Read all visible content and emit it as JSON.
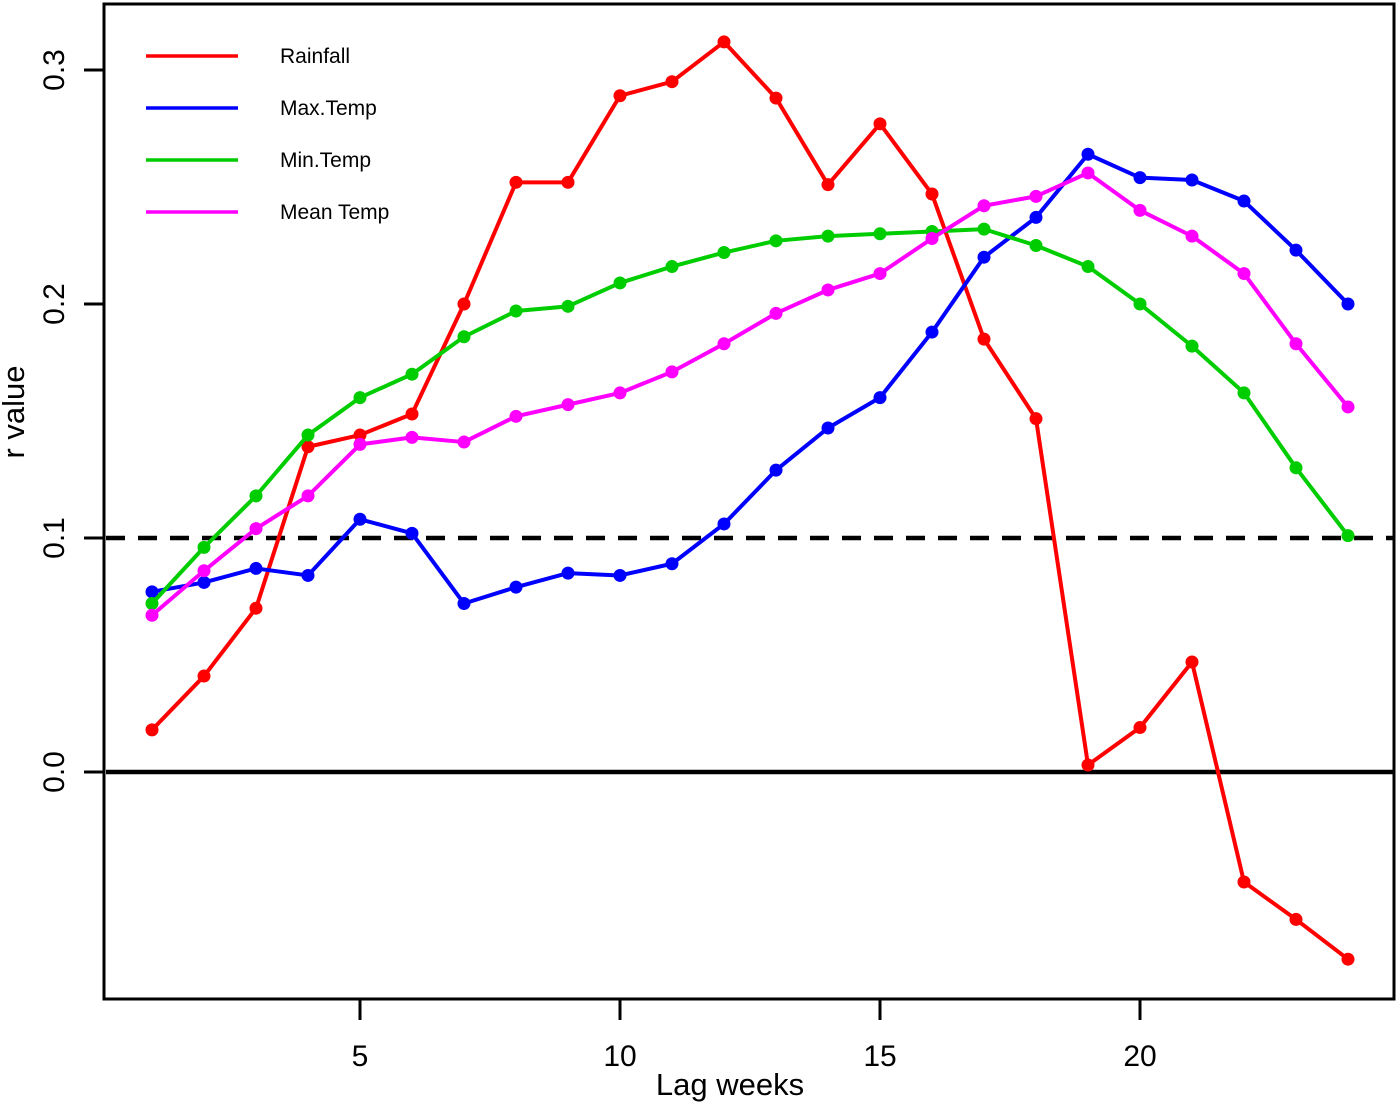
{
  "chart_data": {
    "type": "line",
    "title": "",
    "xlabel": "Lag weeks",
    "ylabel": "r value",
    "x": [
      1,
      2,
      3,
      4,
      5,
      6,
      7,
      8,
      9,
      10,
      11,
      12,
      13,
      14,
      15,
      16,
      17,
      18,
      19,
      20,
      21,
      22,
      23,
      24
    ],
    "xlim": [
      0.1,
      24.9
    ],
    "ylim": [
      -0.097,
      0.327
    ],
    "grid": false,
    "legend_position": "top-left",
    "x_axis": {
      "ticks": [
        5,
        10,
        15,
        20
      ]
    },
    "y_axis": {
      "ticks": [
        0.0,
        0.1,
        0.2,
        0.3
      ],
      "tick_labels": [
        "0.0",
        "0.1",
        "0.2",
        "0.3"
      ]
    },
    "reference_lines": [
      {
        "value": 0.0,
        "style": "solid",
        "color": "#000000",
        "name": "zero-line"
      },
      {
        "value": 0.1,
        "style": "dashed",
        "color": "#000000",
        "name": "threshold-line"
      }
    ],
    "series": [
      {
        "name": "Rainfall",
        "color": "#FF0000",
        "values": [
          0.018,
          0.041,
          0.07,
          0.139,
          0.144,
          0.153,
          0.2,
          0.252,
          0.252,
          0.289,
          0.295,
          0.312,
          0.288,
          0.251,
          0.277,
          0.247,
          0.185,
          0.151,
          0.003,
          0.019,
          0.047,
          -0.047,
          -0.063,
          -0.08
        ]
      },
      {
        "name": "Max.Temp",
        "color": "#0000FF",
        "values": [
          0.077,
          0.081,
          0.087,
          0.084,
          0.108,
          0.102,
          0.072,
          0.079,
          0.085,
          0.084,
          0.089,
          0.106,
          0.129,
          0.147,
          0.16,
          0.188,
          0.22,
          0.237,
          0.264,
          0.254,
          0.253,
          0.244,
          0.223,
          0.2
        ]
      },
      {
        "name": "Min.Temp",
        "color": "#00CD00",
        "values": [
          0.072,
          0.096,
          0.118,
          0.144,
          0.16,
          0.17,
          0.186,
          0.197,
          0.199,
          0.209,
          0.216,
          0.222,
          0.227,
          0.229,
          0.23,
          0.231,
          0.232,
          0.225,
          0.216,
          0.2,
          0.182,
          0.162,
          0.13,
          0.101
        ]
      },
      {
        "name": "Mean Temp",
        "color": "#FF00FF",
        "values": [
          0.067,
          0.086,
          0.104,
          0.118,
          0.14,
          0.143,
          0.141,
          0.152,
          0.157,
          0.162,
          0.171,
          0.183,
          0.196,
          0.206,
          0.213,
          0.228,
          0.242,
          0.246,
          0.256,
          0.24,
          0.229,
          0.213,
          0.183,
          0.156
        ]
      }
    ]
  }
}
